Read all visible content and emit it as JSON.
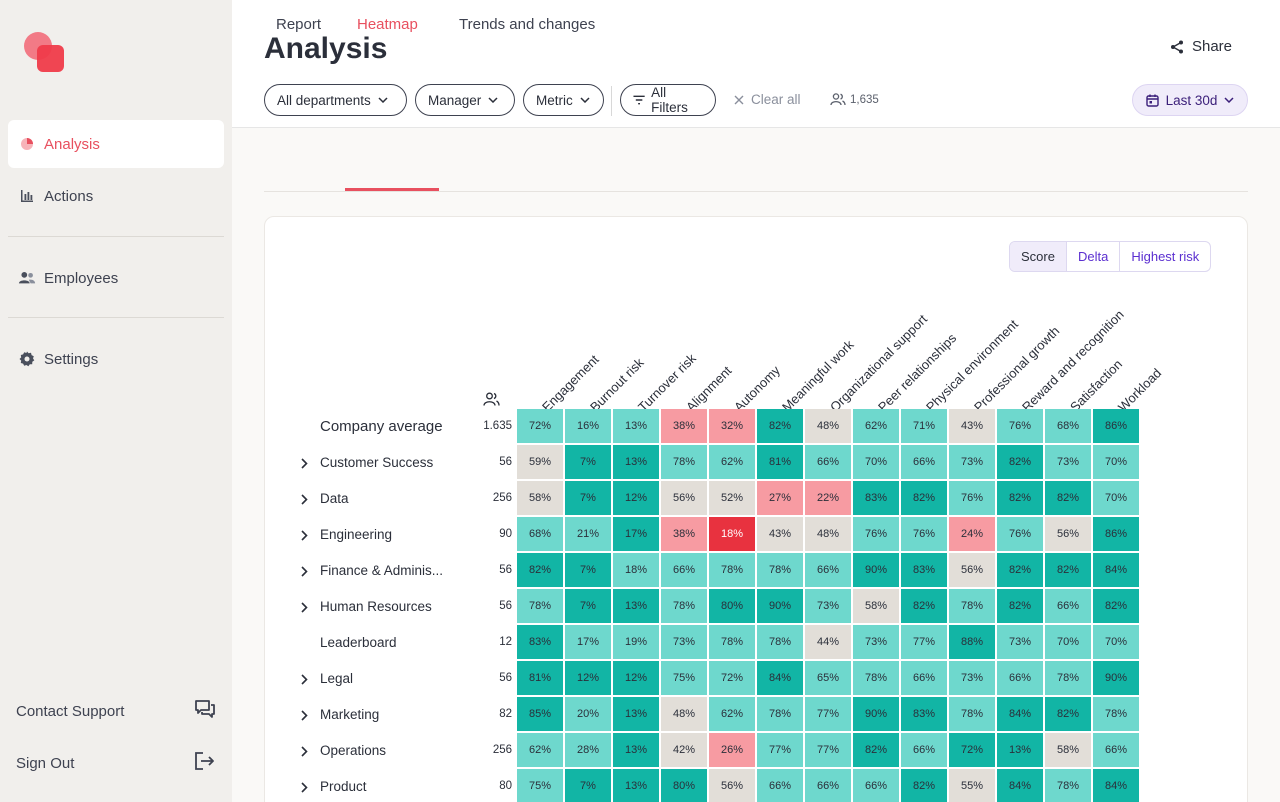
{
  "sidebar": {
    "items": [
      {
        "label": "Analysis",
        "icon": "pie-chart-icon",
        "active": true
      },
      {
        "label": "Actions",
        "icon": "bar-chart-icon",
        "active": false
      },
      {
        "label": "Employees",
        "icon": "people-icon",
        "active": false
      },
      {
        "label": "Settings",
        "icon": "gear-icon",
        "active": false
      }
    ],
    "contact_support": "Contact Support",
    "sign_out": "Sign Out"
  },
  "header": {
    "title": "Analysis",
    "share_label": "Share",
    "filters": [
      "All departments",
      "Manager",
      "Metric"
    ],
    "all_filters_label": "All Filters",
    "clear_all_label": "Clear all",
    "people_count": "1,635",
    "date_range": "Last 30d"
  },
  "tabs": [
    "Report",
    "Heatmap",
    "Trends and changes"
  ],
  "active_tab": "Heatmap",
  "view_toggle": {
    "options": [
      "Score",
      "Delta",
      "Highest risk"
    ],
    "selected": "Score"
  },
  "colors": {
    "high": "#12b5a5",
    "good": "#6ed8cd",
    "neutral": "#e2ded8",
    "warn": "#f79ba2",
    "bad": "#e8323f",
    "accent": "#e8505f"
  },
  "heatmap": {
    "columns": [
      "Engagement",
      "Burnout risk",
      "Turnover risk",
      "Alignment",
      "Autonomy",
      "Meaningful work",
      "Organizational support",
      "Peer relationships",
      "Physical environment",
      "Professional growth",
      "Reward and recognition",
      "Satisfaction",
      "Workload"
    ],
    "rows": [
      {
        "label": "Company average",
        "count": "1.635",
        "expandable": false,
        "values": [
          "72%",
          "16%",
          "13%",
          "38%",
          "32%",
          "82%",
          "48%",
          "62%",
          "71%",
          "43%",
          "76%",
          "68%",
          "86%"
        ],
        "levels": [
          "good",
          "good",
          "good",
          "warn",
          "warn",
          "high",
          "neutral",
          "good",
          "good",
          "neutral",
          "good",
          "good",
          "high"
        ]
      },
      {
        "label": "Customer Success",
        "count": "56",
        "expandable": true,
        "values": [
          "59%",
          "7%",
          "13%",
          "78%",
          "62%",
          "81%",
          "66%",
          "70%",
          "66%",
          "73%",
          "82%",
          "73%",
          "70%"
        ],
        "levels": [
          "neutral",
          "high",
          "high",
          "good",
          "good",
          "high",
          "good",
          "good",
          "good",
          "good",
          "high",
          "good",
          "good"
        ]
      },
      {
        "label": "Data",
        "count": "256",
        "expandable": true,
        "values": [
          "58%",
          "7%",
          "12%",
          "56%",
          "52%",
          "27%",
          "22%",
          "83%",
          "82%",
          "76%",
          "82%",
          "82%",
          "70%"
        ],
        "levels": [
          "neutral",
          "high",
          "high",
          "neutral",
          "neutral",
          "warn",
          "warn",
          "high",
          "high",
          "good",
          "high",
          "high",
          "good"
        ]
      },
      {
        "label": "Engineering",
        "count": "90",
        "expandable": true,
        "values": [
          "68%",
          "21%",
          "17%",
          "38%",
          "18%",
          "43%",
          "48%",
          "76%",
          "76%",
          "24%",
          "76%",
          "56%",
          "86%"
        ],
        "levels": [
          "good",
          "good",
          "high",
          "warn",
          "bad",
          "neutral",
          "neutral",
          "good",
          "good",
          "warn",
          "good",
          "neutral",
          "high"
        ]
      },
      {
        "label": "Finance & Adminis...",
        "count": "56",
        "expandable": true,
        "values": [
          "82%",
          "7%",
          "18%",
          "66%",
          "78%",
          "78%",
          "66%",
          "90%",
          "83%",
          "56%",
          "82%",
          "82%",
          "84%"
        ],
        "levels": [
          "high",
          "high",
          "good",
          "good",
          "good",
          "good",
          "good",
          "high",
          "high",
          "neutral",
          "high",
          "high",
          "high"
        ]
      },
      {
        "label": "Human Resources",
        "count": "56",
        "expandable": true,
        "values": [
          "78%",
          "7%",
          "13%",
          "78%",
          "80%",
          "90%",
          "73%",
          "58%",
          "82%",
          "78%",
          "82%",
          "66%",
          "82%"
        ],
        "levels": [
          "good",
          "high",
          "high",
          "good",
          "high",
          "high",
          "good",
          "neutral",
          "high",
          "good",
          "high",
          "good",
          "high"
        ]
      },
      {
        "label": "Leaderboard",
        "count": "12",
        "expandable": false,
        "values": [
          "83%",
          "17%",
          "19%",
          "73%",
          "78%",
          "78%",
          "44%",
          "73%",
          "77%",
          "88%",
          "73%",
          "70%",
          "70%"
        ],
        "levels": [
          "high",
          "good",
          "good",
          "good",
          "good",
          "good",
          "neutral",
          "good",
          "good",
          "high",
          "good",
          "good",
          "good"
        ]
      },
      {
        "label": "Legal",
        "count": "56",
        "expandable": true,
        "values": [
          "81%",
          "12%",
          "12%",
          "75%",
          "72%",
          "84%",
          "65%",
          "78%",
          "66%",
          "73%",
          "66%",
          "78%",
          "90%"
        ],
        "levels": [
          "high",
          "high",
          "high",
          "good",
          "good",
          "high",
          "good",
          "good",
          "good",
          "good",
          "good",
          "good",
          "high"
        ]
      },
      {
        "label": "Marketing",
        "count": "82",
        "expandable": true,
        "values": [
          "85%",
          "20%",
          "13%",
          "48%",
          "62%",
          "78%",
          "77%",
          "90%",
          "83%",
          "78%",
          "84%",
          "82%",
          "78%"
        ],
        "levels": [
          "high",
          "good",
          "high",
          "neutral",
          "good",
          "good",
          "good",
          "high",
          "high",
          "good",
          "high",
          "high",
          "good"
        ]
      },
      {
        "label": "Operations",
        "count": "256",
        "expandable": true,
        "values": [
          "62%",
          "28%",
          "13%",
          "42%",
          "26%",
          "77%",
          "77%",
          "82%",
          "66%",
          "72%",
          "13%",
          "58%",
          "66%"
        ],
        "levels": [
          "good",
          "good",
          "high",
          "neutral",
          "warn",
          "good",
          "good",
          "high",
          "good",
          "high",
          "high",
          "neutral",
          "good"
        ]
      },
      {
        "label": "Product",
        "count": "80",
        "expandable": true,
        "values": [
          "75%",
          "7%",
          "13%",
          "80%",
          "56%",
          "66%",
          "66%",
          "66%",
          "82%",
          "55%",
          "84%",
          "78%",
          "84%"
        ],
        "levels": [
          "good",
          "high",
          "high",
          "high",
          "neutral",
          "good",
          "good",
          "good",
          "high",
          "neutral",
          "high",
          "good",
          "high"
        ]
      }
    ]
  }
}
